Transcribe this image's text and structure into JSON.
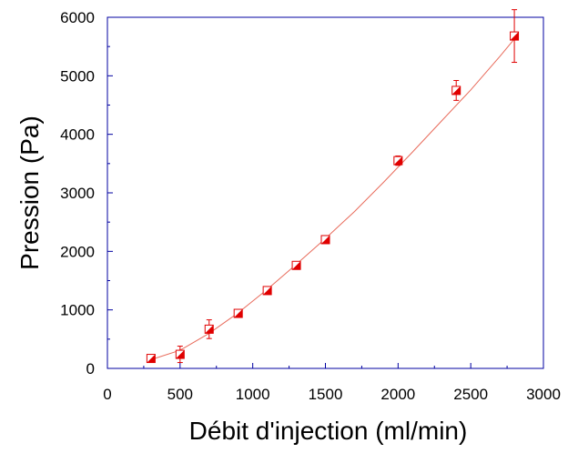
{
  "chart_data": {
    "type": "scatter",
    "title": "",
    "xlabel": "Débit d'injection (ml/min)",
    "ylabel": "Pression (Pa)",
    "xlim": [
      0,
      3000
    ],
    "ylim": [
      0,
      6000
    ],
    "xticks": [
      0,
      500,
      1000,
      1500,
      2000,
      2500,
      3000
    ],
    "yticks": [
      0,
      1000,
      2000,
      3000,
      4000,
      5000,
      6000
    ],
    "xtick_labels": [
      "0",
      "500",
      "1000",
      "1500",
      "2000",
      "2500",
      "3000"
    ],
    "ytick_labels": [
      "0",
      "1000",
      "2000",
      "3000",
      "4000",
      "5000",
      "6000"
    ],
    "grid": false,
    "legend": "none",
    "series": [
      {
        "marker": "half-filled-square",
        "color": "#e00000",
        "points": [
          {
            "x": 300,
            "y": 170,
            "err": 30
          },
          {
            "x": 500,
            "y": 240,
            "err": 140
          },
          {
            "x": 700,
            "y": 670,
            "err": 160
          },
          {
            "x": 900,
            "y": 940,
            "err": 30
          },
          {
            "x": 1100,
            "y": 1330,
            "err": 30
          },
          {
            "x": 1300,
            "y": 1760,
            "err": 30
          },
          {
            "x": 1500,
            "y": 2200,
            "err": 30
          },
          {
            "x": 2000,
            "y": 3550,
            "err": 80
          },
          {
            "x": 2400,
            "y": 4750,
            "err": 170
          },
          {
            "x": 2800,
            "y": 5680,
            "err": 450
          }
        ]
      }
    ],
    "fit_line": {
      "color": "#e86a5a",
      "x": [
        300,
        500,
        700,
        900,
        1100,
        1300,
        1500,
        1700,
        1900,
        2100,
        2300,
        2500,
        2700,
        2800
      ],
      "y": [
        150,
        310,
        600,
        950,
        1350,
        1780,
        2220,
        2680,
        3180,
        3700,
        4230,
        4760,
        5330,
        5630
      ]
    },
    "colors": {
      "axis": "#0000a0",
      "marker": "#e00000"
    }
  }
}
